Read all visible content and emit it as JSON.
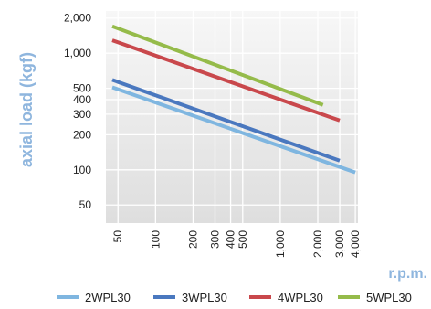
{
  "chart_data": {
    "type": "line",
    "title": "",
    "xlabel": "r.p.m.",
    "ylabel": "axial load (kgf)",
    "x_scale": "log",
    "y_scale": "log",
    "xlim": [
      40,
      4200
    ],
    "ylim": [
      35,
      2300
    ],
    "x_ticks": [
      {
        "value": 50,
        "label": "50"
      },
      {
        "value": 100,
        "label": "100"
      },
      {
        "value": 200,
        "label": "200"
      },
      {
        "value": 300,
        "label": "300"
      },
      {
        "value": 400,
        "label": "400"
      },
      {
        "value": 500,
        "label": "500"
      },
      {
        "value": 1000,
        "label": "1,000"
      },
      {
        "value": 2000,
        "label": "2,000"
      },
      {
        "value": 3000,
        "label": "3,000"
      },
      {
        "value": 4000,
        "label": "4,000"
      }
    ],
    "y_ticks": [
      {
        "value": 50,
        "label": "50"
      },
      {
        "value": 100,
        "label": "100"
      },
      {
        "value": 200,
        "label": "200"
      },
      {
        "value": 300,
        "label": "300"
      },
      {
        "value": 400,
        "label": "400"
      },
      {
        "value": 500,
        "label": "500"
      },
      {
        "value": 1000,
        "label": "1,000"
      },
      {
        "value": 2000,
        "label": "2,000"
      }
    ],
    "grid": true,
    "legend_position": "bottom",
    "series": [
      {
        "name": "2WPL30",
        "color": "#7fb6e0",
        "x": [
          45,
          4000
        ],
        "y": [
          510,
          95
        ]
      },
      {
        "name": "3WPL30",
        "color": "#4a78bf",
        "x": [
          45,
          3000
        ],
        "y": [
          590,
          120
        ]
      },
      {
        "name": "4WPL30",
        "color": "#c9484c",
        "x": [
          45,
          3000
        ],
        "y": [
          1290,
          265
        ]
      },
      {
        "name": "5WPL30",
        "color": "#95bb4a",
        "x": [
          45,
          2200
        ],
        "y": [
          1700,
          360
        ]
      }
    ]
  },
  "colors": {
    "axis_label": "#8fb6de",
    "tick_label": "#222222",
    "plot_background": "#ececec",
    "grid": "#ffffff"
  }
}
